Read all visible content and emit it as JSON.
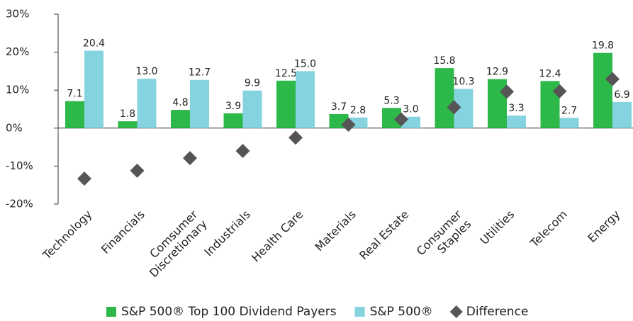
{
  "chart_data": {
    "type": "bar",
    "categories": [
      "Technology",
      "Financials",
      "Comsumer\nDiscretionary",
      "Industrials",
      "Health Care",
      "Materials",
      "Real Estate",
      "Consumer\nStaples",
      "Utilities",
      "Telecom",
      "Energy"
    ],
    "series": [
      {
        "name": "S&P 500® Top 100 Dividend Payers",
        "color": "#2db84a",
        "type": "bar",
        "values": [
          7.1,
          1.8,
          4.8,
          3.9,
          12.5,
          3.7,
          5.3,
          15.8,
          12.9,
          12.4,
          19.8
        ],
        "value_labels": [
          "7.1",
          "1.8",
          "4.8",
          "3.9",
          "12.5",
          "3.7",
          "5.3",
          "15.8",
          "12.9",
          "12.4",
          "19.8"
        ]
      },
      {
        "name": "S&P 500®",
        "color": "#86d3e0",
        "type": "bar",
        "values": [
          20.4,
          13.0,
          12.7,
          9.9,
          15.0,
          2.8,
          3.0,
          10.3,
          3.3,
          2.7,
          6.9
        ],
        "value_labels": [
          "20.4",
          "13.0",
          "12.7",
          "9.9",
          "15.0",
          "2.8",
          "3.0",
          "10.3",
          "3.3",
          "2.7",
          "6.9"
        ]
      },
      {
        "name": "Difference",
        "color": "#555555",
        "type": "scatter",
        "values": [
          -13.3,
          -11.2,
          -7.9,
          -6.0,
          -2.5,
          0.9,
          2.3,
          5.5,
          9.6,
          9.7,
          12.9
        ]
      }
    ],
    "ylim": [
      -20,
      30
    ],
    "yticks": [
      {
        "value": 30,
        "label": "30%"
      },
      {
        "value": 20,
        "label": "20%"
      },
      {
        "value": 10,
        "label": "10%"
      },
      {
        "value": 0,
        "label": "0%"
      },
      {
        "value": -10,
        "label": "-10%"
      },
      {
        "value": -20,
        "label": "-20%"
      }
    ],
    "legend": "bottom"
  }
}
